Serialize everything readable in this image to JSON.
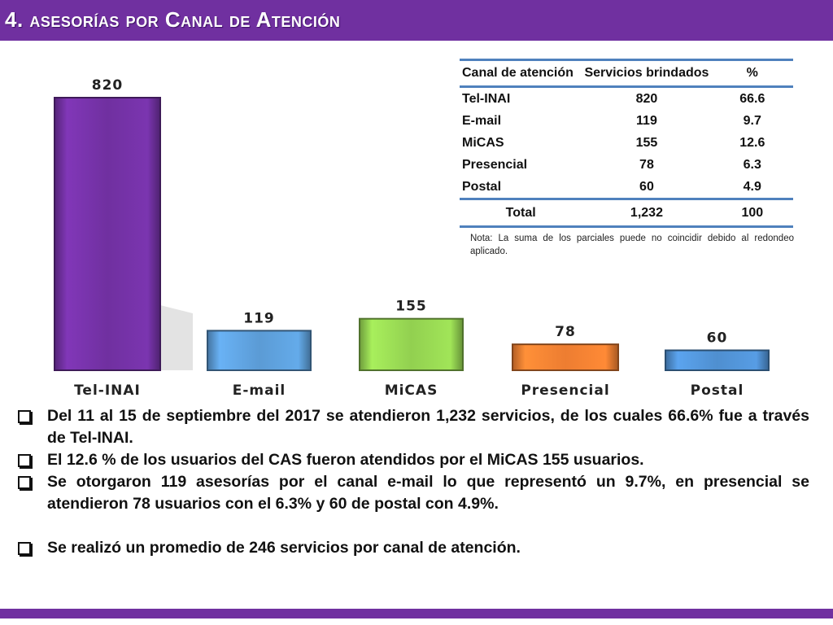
{
  "header": {
    "title": "4. asesorías por Canal de Atención"
  },
  "colors": {
    "header": "#7030a0",
    "table_rule": "#4f81bd"
  },
  "chart_data": {
    "type": "bar",
    "categories": [
      "Tel-INAI",
      "E-mail",
      "MiCAS",
      "Presencial",
      "Postal"
    ],
    "values": [
      820,
      119,
      155,
      78,
      60
    ],
    "data_labels": [
      "820",
      "119",
      "155",
      "78",
      "60"
    ],
    "colors": [
      "#7030a0",
      "#5b9bd5",
      "#92d050",
      "#ed7d31",
      "#4f8fd0"
    ],
    "title": "",
    "xlabel": "",
    "ylabel": "",
    "ylim": [
      0,
      820
    ],
    "grid": false,
    "legend": "none"
  },
  "table": {
    "headers": [
      "Canal de atención",
      "Servicios brindados",
      "%"
    ],
    "rows": [
      [
        "Tel-INAI",
        "820",
        "66.6"
      ],
      [
        "E-mail",
        "119",
        "9.7"
      ],
      [
        "MiCAS",
        "155",
        "12.6"
      ],
      [
        "Presencial",
        "78",
        "6.3"
      ],
      [
        "Postal",
        "60",
        "4.9"
      ]
    ],
    "total": [
      "Total",
      "1,232",
      "100"
    ]
  },
  "note": "Nota: La suma de los parciales puede no coincidir debido al redondeo aplicado.",
  "bullets": [
    "Del 11 al 15  de septiembre del 2017 se atendieron 1,232 servicios, de los cuales 66.6% fue a través de Tel-INAI.",
    "El 12.6 % de los usuarios del CAS fueron atendidos por el MiCAS 155 usuarios.",
    "Se otorgaron 119 asesorías por el canal e-mail lo que representó un 9.7%, en presencial se atendieron 78 usuarios con el 6.3% y 60 de postal con 4.9%.",
    "Se realizó un promedio de 246 servicios por canal de atención."
  ]
}
